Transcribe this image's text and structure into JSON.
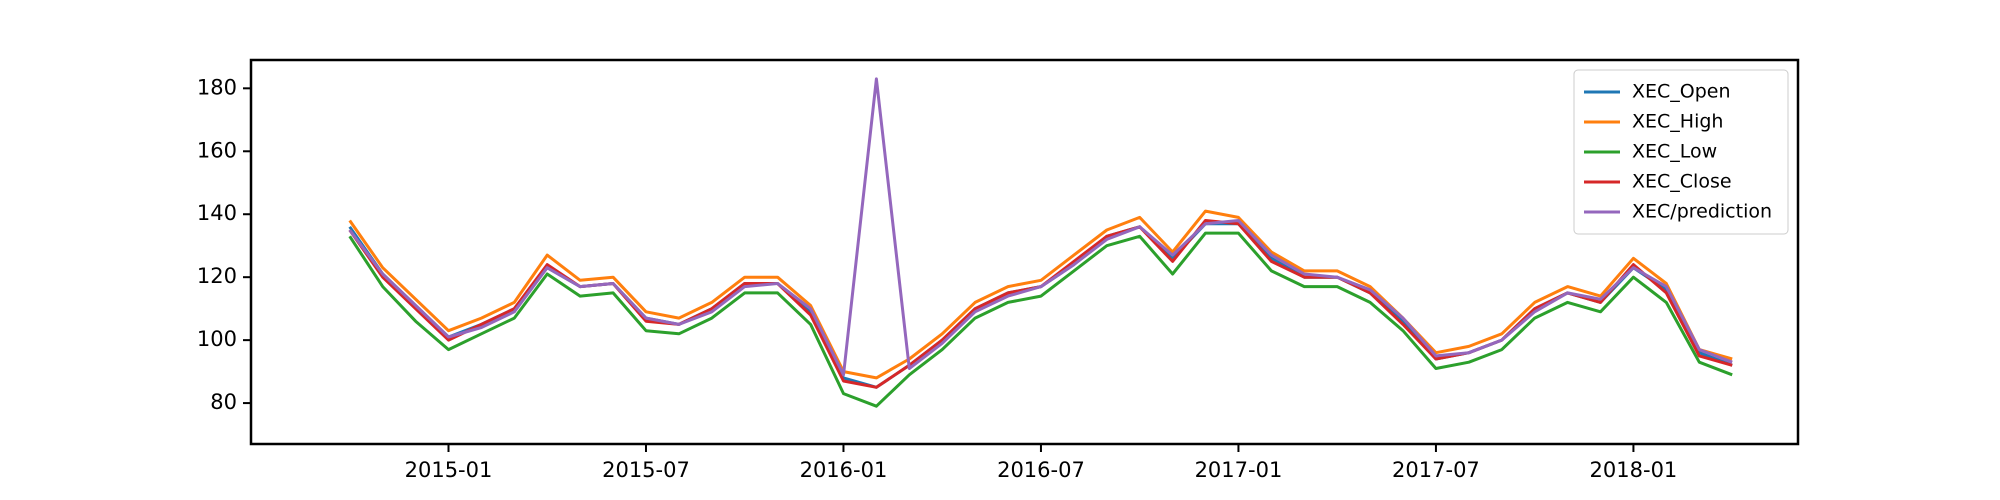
{
  "chart_data": {
    "type": "line",
    "x": [
      "2014-10",
      "2014-11",
      "2014-12",
      "2015-01",
      "2015-02",
      "2015-03",
      "2015-04",
      "2015-05",
      "2015-06",
      "2015-07",
      "2015-08",
      "2015-09",
      "2015-10",
      "2015-11",
      "2015-12",
      "2016-01",
      "2016-02",
      "2016-03",
      "2016-04",
      "2016-05",
      "2016-06",
      "2016-07",
      "2016-08",
      "2016-09",
      "2016-10",
      "2016-11",
      "2016-12",
      "2017-01",
      "2017-02",
      "2017-03",
      "2017-04",
      "2017-05",
      "2017-06",
      "2017-07",
      "2017-08",
      "2017-09",
      "2017-10",
      "2017-11",
      "2017-12",
      "2018-01",
      "2018-02",
      "2018-03",
      "2018-04"
    ],
    "series": [
      {
        "name": "XEC_Open",
        "color": "#1f77b4",
        "values": [
          136,
          121,
          111,
          101,
          105,
          110,
          123,
          117,
          118,
          107,
          105,
          110,
          118,
          118,
          109,
          88,
          85,
          92,
          100,
          110,
          115,
          117,
          124,
          133,
          136,
          126,
          137,
          137,
          126,
          120,
          120,
          115,
          106,
          94,
          96,
          100,
          110,
          115,
          112,
          123,
          116,
          96,
          92
        ]
      },
      {
        "name": "XEC_High",
        "color": "#ff7f0e",
        "values": [
          138,
          123,
          113,
          103,
          107,
          112,
          127,
          119,
          120,
          109,
          107,
          112,
          120,
          120,
          111,
          90,
          88,
          94,
          102,
          112,
          117,
          119,
          127,
          135,
          139,
          128,
          141,
          139,
          128,
          122,
          122,
          117,
          107,
          96,
          98,
          102,
          112,
          117,
          114,
          126,
          118,
          97,
          94
        ]
      },
      {
        "name": "XEC_Low",
        "color": "#2ca02c",
        "values": [
          133,
          117,
          106,
          97,
          102,
          107,
          121,
          114,
          115,
          103,
          102,
          107,
          115,
          115,
          105,
          83,
          79,
          89,
          97,
          107,
          112,
          114,
          122,
          130,
          133,
          121,
          134,
          134,
          122,
          117,
          117,
          112,
          103,
          91,
          93,
          97,
          107,
          112,
          109,
          120,
          112,
          93,
          89
        ]
      },
      {
        "name": "XEC_Close",
        "color": "#d62728",
        "values": [
          135,
          120,
          110,
          100,
          105,
          110,
          124,
          117,
          118,
          106,
          105,
          110,
          118,
          118,
          108,
          87,
          85,
          92,
          100,
          110,
          115,
          117,
          125,
          133,
          136,
          125,
          138,
          137,
          125,
          120,
          120,
          115,
          105,
          94,
          96,
          100,
          110,
          115,
          112,
          124,
          115,
          95,
          92
        ]
      },
      {
        "name": "XEC/prediction",
        "color": "#9467bd",
        "values": [
          135,
          121,
          111,
          101,
          104,
          109,
          123,
          117,
          118,
          107,
          105,
          109,
          117,
          118,
          110,
          89,
          183,
          91,
          99,
          109,
          114,
          117,
          124,
          132,
          136,
          127,
          137,
          138,
          127,
          121,
          120,
          116,
          107,
          95,
          96,
          100,
          109,
          115,
          113,
          123,
          117,
          97,
          93
        ]
      }
    ],
    "xlim": [
      "2014-07",
      "2018-06"
    ],
    "xticks": [
      "2015-01",
      "2015-07",
      "2016-01",
      "2016-07",
      "2017-01",
      "2017-07",
      "2018-01"
    ],
    "ylim": [
      67,
      189
    ],
    "yticks": [
      80,
      100,
      120,
      140,
      160,
      180
    ],
    "legend": "upper right"
  }
}
